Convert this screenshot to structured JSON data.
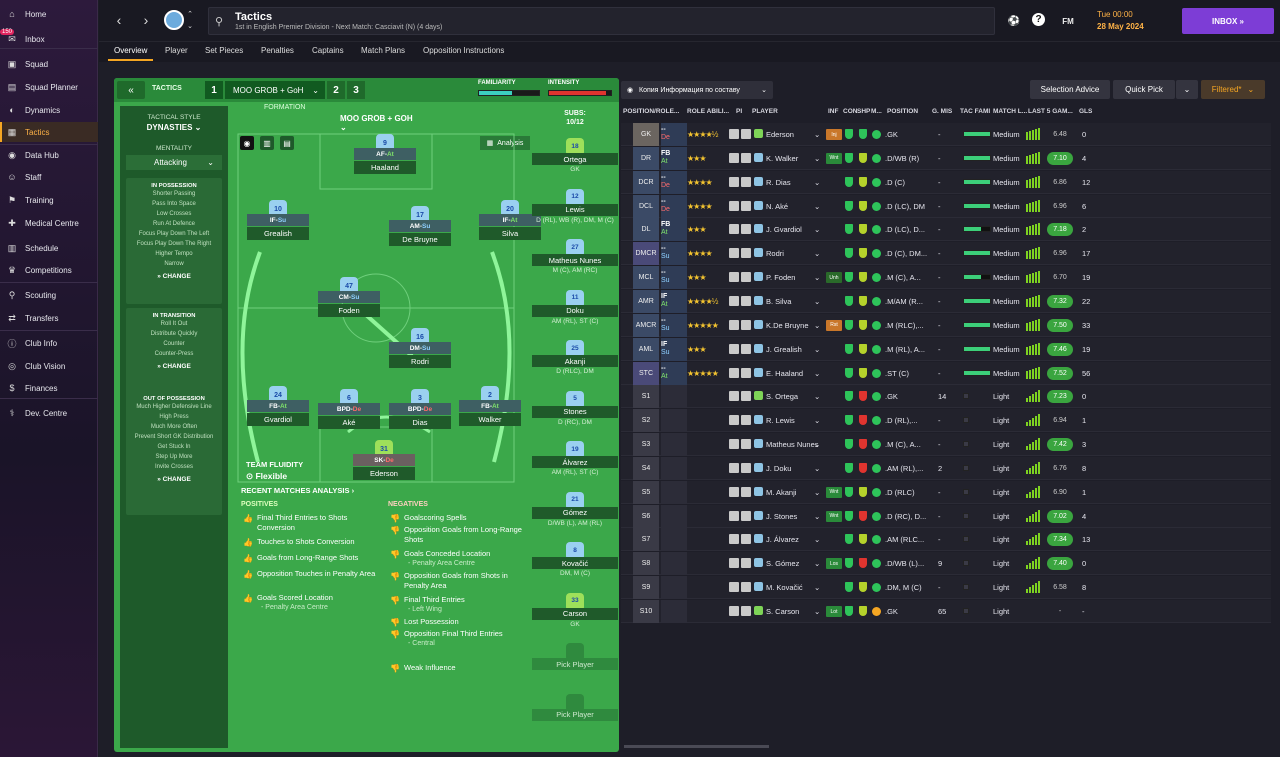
{
  "sidebar": {
    "inbox_badge": "150",
    "items": [
      {
        "label": "Home",
        "icon": "home-icon",
        "glyph": "⌂"
      },
      {
        "label": "Inbox",
        "icon": "inbox-icon",
        "glyph": "✉"
      },
      {
        "label": "Squad",
        "icon": "squad-icon",
        "glyph": "▣"
      },
      {
        "label": "Squad Planner",
        "icon": "planner-icon",
        "glyph": "▤"
      },
      {
        "label": "Dynamics",
        "icon": "dynamics-icon",
        "glyph": "◐"
      },
      {
        "label": "Tactics",
        "icon": "tactics-icon",
        "glyph": "▦"
      },
      {
        "label": "Data Hub",
        "icon": "data-hub-icon",
        "glyph": "◉"
      },
      {
        "label": "Staff",
        "icon": "staff-icon",
        "glyph": "☺"
      },
      {
        "label": "Training",
        "icon": "training-icon",
        "glyph": "⚑"
      },
      {
        "label": "Medical Centre",
        "icon": "medical-icon",
        "glyph": "✚"
      },
      {
        "label": "Schedule",
        "icon": "schedule-icon",
        "glyph": "▥"
      },
      {
        "label": "Competitions",
        "icon": "trophy-icon",
        "glyph": "♛"
      },
      {
        "label": "Scouting",
        "icon": "scouting-icon",
        "glyph": "⚲"
      },
      {
        "label": "Transfers",
        "icon": "transfers-icon",
        "glyph": "⇄"
      },
      {
        "label": "Club Info",
        "icon": "club-info-icon",
        "glyph": "ⓘ"
      },
      {
        "label": "Club Vision",
        "icon": "club-vision-icon",
        "glyph": "◎"
      },
      {
        "label": "Finances",
        "icon": "finances-icon",
        "glyph": "$"
      },
      {
        "label": "Dev. Centre",
        "icon": "dev-centre-icon",
        "glyph": "⚕"
      }
    ]
  },
  "header": {
    "title": "Tactics",
    "subtitle": "1st in English Premier Division - Next Match: Casciavit (N) (4 days)",
    "time": "Tue 00:00",
    "date": "28 May 2024",
    "fm_label": "FM",
    "inbox_label": "INBOX  »"
  },
  "tabs": [
    "Overview",
    "Player",
    "Set Pieces",
    "Penalties",
    "Captains",
    "Match Plans",
    "Opposition Instructions"
  ],
  "tactics": {
    "label": "TACTICS",
    "slots": [
      "1",
      "2",
      "3"
    ],
    "name": "MOO GROB + GoH",
    "familiarity_label": "FAMILIARITY",
    "familiarity_level": 0.55,
    "intensity_label": "INTENSITY",
    "intensity_level": 0.92,
    "colors": {
      "familiarity": "#3ccfbf",
      "intensity": "#e0342f",
      "accent": "#f5a623",
      "pitch": "#3ba84a"
    },
    "style_title": "TACTICAL STYLE",
    "style": "DYNASTIES ⌄",
    "mentality_title": "MENTALITY",
    "mentality": "Attacking",
    "in_possession": {
      "title": "IN POSSESSION",
      "lines": [
        "Shorter Passing",
        "Pass Into Space",
        "Low Crosses",
        "Run At Defence",
        "Focus Play Down The Left",
        "Focus Play Down The Right",
        "Higher Tempo",
        "Narrow"
      ]
    },
    "in_transition": {
      "title": "IN TRANSITION",
      "lines": [
        "Roll It Out",
        "Distribute Quickly",
        "Counter",
        "Counter-Press"
      ]
    },
    "out_of_possession": {
      "title": "OUT OF POSSESSION",
      "lines": [
        "Much Higher Defensive Line",
        "High Press",
        "Much More Often",
        "Prevent Short GK Distribution",
        "Get Stuck In",
        "Step Up More",
        "Invite Crosses"
      ]
    },
    "change_label": "CHANGE",
    "formation_title": "FORMATION",
    "formation": "MOO GROB + GOH ⌄",
    "analysis_label": "Analysis",
    "fluidity_title": "TEAM FLUIDITY",
    "fluidity": "Flexible",
    "subs_title": "SUBS:",
    "subs_count": "10/12"
  },
  "pitch_players": [
    {
      "num": "9",
      "role": "AF",
      "duty": "At",
      "name": "Haaland",
      "gk": false
    },
    {
      "num": "10",
      "role": "IF",
      "duty": "Su",
      "name": "Grealish",
      "gk": false
    },
    {
      "num": "17",
      "role": "AM",
      "duty": "Su",
      "name": "De Bruyne",
      "gk": false
    },
    {
      "num": "20",
      "role": "IF",
      "duty": "At",
      "name": "Silva",
      "gk": false
    },
    {
      "num": "47",
      "role": "CM",
      "duty": "Su",
      "name": "Foden",
      "gk": false
    },
    {
      "num": "16",
      "role": "DM",
      "duty": "Su",
      "name": "Rodri",
      "gk": false
    },
    {
      "num": "24",
      "role": "FB",
      "duty": "At",
      "name": "Gvardiol",
      "gk": false
    },
    {
      "num": "6",
      "role": "BPD",
      "duty": "De",
      "name": "Aké",
      "gk": false
    },
    {
      "num": "3",
      "role": "BPD",
      "duty": "De",
      "name": "Dias",
      "gk": false
    },
    {
      "num": "2",
      "role": "FB",
      "duty": "At",
      "name": "Walker",
      "gk": false
    },
    {
      "num": "31",
      "role": "SK",
      "duty": "De",
      "name": "Ederson",
      "gk": true
    }
  ],
  "subs": [
    {
      "num": "18",
      "name": "Ortega",
      "pos": "GK",
      "gk": true
    },
    {
      "num": "12",
      "name": "Lewis",
      "pos": "D (RL), WB (R), DM, M (C)",
      "gk": false
    },
    {
      "num": "27",
      "name": "Matheus Nunes",
      "pos": "M (C), AM (RC)",
      "gk": false
    },
    {
      "num": "11",
      "name": "Doku",
      "pos": "AM (RL), ST (C)",
      "gk": false
    },
    {
      "num": "25",
      "name": "Akanji",
      "pos": "D (RLC), DM",
      "gk": false
    },
    {
      "num": "5",
      "name": "Stones",
      "pos": "D (RC), DM",
      "gk": false
    },
    {
      "num": "19",
      "name": "Álvarez",
      "pos": "AM (RL), ST (C)",
      "gk": false
    },
    {
      "num": "21",
      "name": "Gómez",
      "pos": "D/WB (L), AM (RL)",
      "gk": false
    },
    {
      "num": "8",
      "name": "Kovačić",
      "pos": "DM, M (C)",
      "gk": false
    },
    {
      "num": "33",
      "name": "Carson",
      "pos": "GK",
      "gk": true
    },
    {
      "num": "",
      "name": "Pick Player",
      "pos": "",
      "gk": false
    },
    {
      "num": "",
      "name": "Pick Player",
      "pos": "",
      "gk": false
    }
  ],
  "recent": {
    "title": "RECENT MATCHES ANALYSIS ›",
    "positives_title": "POSITIVES",
    "negatives_title": "NEGATIVES",
    "positives": [
      {
        "text": "Final Third Entries to Shots Conversion",
        "detail": ""
      },
      {
        "text": "Touches to Shots Conversion",
        "detail": ""
      },
      {
        "text": "Goals from Long-Range Shots",
        "detail": ""
      },
      {
        "text": "Opposition Touches in Penalty Area",
        "detail": ""
      },
      {
        "text": "Goals Scored Location",
        "detail": "- Penalty Area Centre"
      }
    ],
    "negatives": [
      {
        "text": "Goalscoring Spells",
        "detail": ""
      },
      {
        "text": "Opposition Goals from Long-Range Shots",
        "detail": ""
      },
      {
        "text": "Goals Conceded Location",
        "detail": "- Penalty Area Centre"
      },
      {
        "text": "Opposition Goals from Shots in Penalty Area",
        "detail": ""
      },
      {
        "text": "Final Third Entries",
        "detail": "- Left Wing"
      },
      {
        "text": "Lost Possession",
        "detail": ""
      },
      {
        "text": "Opposition Final Third Entries",
        "detail": "- Central"
      },
      {
        "text": "Weak Influence",
        "detail": ""
      }
    ]
  },
  "right": {
    "view_dropdown": "Копия Информация по составу",
    "selection_advice": "Selection Advice",
    "quick_pick": "Quick Pick",
    "filtered": "Filtered*",
    "headers": [
      "POSITION/ROLE...",
      "ROLE ABILI...",
      "PI",
      "PLAYER",
      "INF",
      "CON",
      "SHP",
      "M...",
      "POSITION",
      "G. MIS",
      "TAC FAMI",
      "MATCH L...",
      "LAST 5 GAM...",
      "GLS"
    ],
    "rows": [
      {
        "pos": "GK",
        "r1": "--",
        "r2": "De",
        "stars": "★★★★½",
        "player": "Ederson",
        "inf": "Inj",
        "inf_color": "#c9772a",
        "con": "#2ec45a",
        "shp": "#2ec45a",
        "mic": "#2ec45a",
        "position": ".GK",
        "gmis": "-",
        "tac": 0.0,
        "match": "Medium",
        "bars": [
          8,
          9,
          10,
          11,
          12
        ],
        "rating": "6.48",
        "rtype": "plain",
        "gls": "0",
        "gk": true
      },
      {
        "pos": "DR",
        "r1": "FB",
        "r2": "At",
        "stars": "★★★",
        "player": "K. Walker",
        "inf": "Wnt",
        "inf_color": "#2a8a3a",
        "con": "#2ec45a",
        "shp": "#b5d22b",
        "mic": "#2ec45a",
        "position": ".D/WB (R)",
        "gmis": "-",
        "tac": 0.0,
        "match": "Medium",
        "bars": [
          8,
          9,
          10,
          11,
          12
        ],
        "rating": "7.10",
        "rtype": "good",
        "gls": "4",
        "gk": false
      },
      {
        "pos": "DCR",
        "r1": "--",
        "r2": "De",
        "stars": "★★★★",
        "player": "R. Dias",
        "inf": "",
        "inf_color": "",
        "con": "#2ec45a",
        "shp": "#b5d22b",
        "mic": "#2ec45a",
        "position": ".D (C)",
        "gmis": "-",
        "tac": 0.0,
        "match": "Medium",
        "bars": [
          8,
          9,
          10,
          11,
          12
        ],
        "rating": "6.86",
        "rtype": "plain",
        "gls": "12",
        "gk": false
      },
      {
        "pos": "DCL",
        "r1": "--",
        "r2": "De",
        "stars": "★★★★",
        "player": "N. Aké",
        "inf": "",
        "inf_color": "",
        "con": "#2ec45a",
        "shp": "#b5d22b",
        "mic": "#2ec45a",
        "position": ".D (LC), DM",
        "gmis": "-",
        "tac": 0.0,
        "match": "Medium",
        "bars": [
          8,
          9,
          10,
          11,
          12
        ],
        "rating": "6.96",
        "rtype": "plain",
        "gls": "6",
        "gk": false
      },
      {
        "pos": "DL",
        "r1": "FB",
        "r2": "At",
        "stars": "★★★",
        "player": "J. Gvardiol",
        "inf": "",
        "inf_color": "",
        "con": "#2ec45a",
        "shp": "#b5d22b",
        "mic": "#2ec45a",
        "position": ".D (LC), D...",
        "gmis": "-",
        "tac": 0.35,
        "match": "Medium",
        "bars": [
          8,
          9,
          10,
          11,
          12
        ],
        "rating": "7.18",
        "rtype": "good",
        "gls": "2",
        "gk": false
      },
      {
        "pos": "DMCR",
        "r1": "--",
        "r2": "Su",
        "stars": "★★★★",
        "player": "Rodri",
        "inf": "",
        "inf_color": "",
        "con": "#2ec45a",
        "shp": "#b5d22b",
        "mic": "#2ec45a",
        "position": ".D (C), DM...",
        "gmis": "-",
        "tac": 0.0,
        "match": "Medium",
        "bars": [
          8,
          9,
          10,
          11,
          12
        ],
        "rating": "6.96",
        "rtype": "plain",
        "gls": "17",
        "gk": false
      },
      {
        "pos": "MCL",
        "r1": "--",
        "r2": "Su",
        "stars": "★★★",
        "player": "P. Foden",
        "inf": "Unh",
        "inf_color": "#2a6a2a",
        "con": "#2ec45a",
        "shp": "#b5d22b",
        "mic": "#2ec45a",
        "position": ".M (C), A...",
        "gmis": "-",
        "tac": 0.35,
        "match": "Medium",
        "bars": [
          8,
          9,
          10,
          11,
          12
        ],
        "rating": "6.70",
        "rtype": "plain",
        "gls": "19",
        "gk": false
      },
      {
        "pos": "AMR",
        "r1": "IF",
        "r2": "At",
        "stars": "★★★★½",
        "player": "B. Silva",
        "inf": "",
        "inf_color": "",
        "con": "#2ec45a",
        "shp": "#b5d22b",
        "mic": "#2ec45a",
        "position": ".M/AM (R...",
        "gmis": "-",
        "tac": 0.0,
        "match": "Medium",
        "bars": [
          8,
          9,
          10,
          11,
          12
        ],
        "rating": "7.32",
        "rtype": "good",
        "gls": "22",
        "gk": false
      },
      {
        "pos": "AMCR",
        "r1": "--",
        "r2": "Su",
        "stars": "★★★★★",
        "player": "K.De Bruyne",
        "inf": "Rst",
        "inf_color": "#c9772a",
        "con": "#2ec45a",
        "shp": "#b5d22b",
        "mic": "#2ec45a",
        "position": ".M (RLC),...",
        "gmis": "-",
        "tac": 0.0,
        "match": "Medium",
        "bars": [
          8,
          9,
          10,
          11,
          12
        ],
        "rating": "7.50",
        "rtype": "good",
        "gls": "33",
        "gk": false
      },
      {
        "pos": "AML",
        "r1": "IF",
        "r2": "Su",
        "stars": "★★★",
        "player": "J. Grealish",
        "inf": "",
        "inf_color": "",
        "con": "#2ec45a",
        "shp": "#b5d22b",
        "mic": "#2ec45a",
        "position": ".M (RL), A...",
        "gmis": "-",
        "tac": 0.0,
        "match": "Medium",
        "bars": [
          8,
          9,
          10,
          11,
          12
        ],
        "rating": "7.46",
        "rtype": "good",
        "gls": "19",
        "gk": false
      },
      {
        "pos": "STC",
        "r1": "--",
        "r2": "At",
        "stars": "★★★★★",
        "player": "E. Haaland",
        "inf": "",
        "inf_color": "",
        "con": "#2ec45a",
        "shp": "#b5d22b",
        "mic": "#2ec45a",
        "position": ".ST (C)",
        "gmis": "-",
        "tac": 0.0,
        "match": "Medium",
        "bars": [
          8,
          9,
          10,
          11,
          12
        ],
        "rating": "7.52",
        "rtype": "good",
        "gls": "56",
        "gk": false
      },
      {
        "pos": "S1",
        "r1": "",
        "r2": "",
        "stars": "",
        "player": "S. Ortega",
        "inf": "",
        "inf_color": "",
        "con": "#2ec45a",
        "shp": "#e0342f",
        "mic": "#2ec45a",
        "position": ".GK",
        "gmis": "14",
        "tac": null,
        "match": "Light",
        "bars": [
          4,
          6,
          8,
          10,
          12
        ],
        "rating": "7.23",
        "rtype": "good",
        "gls": "0",
        "gk": true
      },
      {
        "pos": "S2",
        "r1": "",
        "r2": "",
        "stars": "",
        "player": "R. Lewis",
        "inf": "",
        "inf_color": "",
        "con": "#2ec45a",
        "shp": "#e0342f",
        "mic": "#2ec45a",
        "position": ".D (RL),...",
        "gmis": "-",
        "tac": null,
        "match": "Light",
        "bars": [
          4,
          6,
          8,
          10,
          12
        ],
        "rating": "6.94",
        "rtype": "plain",
        "gls": "1",
        "gk": false
      },
      {
        "pos": "S3",
        "r1": "",
        "r2": "",
        "stars": "",
        "player": "Matheus Nunes",
        "inf": "",
        "inf_color": "",
        "con": "#2ec45a",
        "shp": "#e0342f",
        "mic": "#2ec45a",
        "position": ".M (C), A...",
        "gmis": "-",
        "tac": null,
        "match": "Light",
        "bars": [
          4,
          6,
          8,
          10,
          12
        ],
        "rating": "7.42",
        "rtype": "good",
        "gls": "3",
        "gk": false
      },
      {
        "pos": "S4",
        "r1": "",
        "r2": "",
        "stars": "",
        "player": "J. Doku",
        "inf": "",
        "inf_color": "",
        "con": "#2ec45a",
        "shp": "#e0342f",
        "mic": "#2ec45a",
        "position": ".AM (RL),...",
        "gmis": "2",
        "tac": null,
        "match": "Light",
        "bars": [
          4,
          6,
          8,
          10,
          12
        ],
        "rating": "6.76",
        "rtype": "plain",
        "gls": "8",
        "gk": false
      },
      {
        "pos": "S5",
        "r1": "",
        "r2": "",
        "stars": "",
        "player": "M. Akanji",
        "inf": "Wnt",
        "inf_color": "#2a8a3a",
        "con": "#2ec45a",
        "shp": "#b5d22b",
        "mic": "#2ec45a",
        "position": ".D (RLC)",
        "gmis": "-",
        "tac": null,
        "match": "Light",
        "bars": [
          4,
          6,
          8,
          10,
          12
        ],
        "rating": "6.90",
        "rtype": "plain",
        "gls": "1",
        "gk": false
      },
      {
        "pos": "S6",
        "r1": "",
        "r2": "",
        "stars": "",
        "player": "J. Stones",
        "inf": "Wnt",
        "inf_color": "#2a8a3a",
        "con": "#2ec45a",
        "shp": "#e0342f",
        "mic": "#2ec45a",
        "position": ".D (RC), D...",
        "gmis": "-",
        "tac": null,
        "match": "Light",
        "bars": [
          4,
          6,
          8,
          10,
          12
        ],
        "rating": "7.02",
        "rtype": "good",
        "gls": "4",
        "gk": false
      },
      {
        "pos": "S7",
        "r1": "",
        "r2": "",
        "stars": "",
        "player": "J. Álvarez",
        "inf": "",
        "inf_color": "",
        "con": "#2ec45a",
        "shp": "#b5d22b",
        "mic": "#2ec45a",
        "position": ".AM (RLC...",
        "gmis": "-",
        "tac": null,
        "match": "Light",
        "bars": [
          4,
          6,
          8,
          10,
          12
        ],
        "rating": "7.34",
        "rtype": "good",
        "gls": "13",
        "gk": false
      },
      {
        "pos": "S8",
        "r1": "",
        "r2": "",
        "stars": "",
        "player": "S. Gómez",
        "inf": "Los",
        "inf_color": "#2a8a3a",
        "con": "#2ec45a",
        "shp": "#e0342f",
        "mic": "#2ec45a",
        "position": ".D/WB (L)...",
        "gmis": "9",
        "tac": null,
        "match": "Light",
        "bars": [
          4,
          6,
          8,
          10,
          12
        ],
        "rating": "7.40",
        "rtype": "good",
        "gls": "0",
        "gk": false
      },
      {
        "pos": "S9",
        "r1": "",
        "r2": "",
        "stars": "",
        "player": "M. Kovačić",
        "inf": "",
        "inf_color": "",
        "con": "#2ec45a",
        "shp": "#b5d22b",
        "mic": "#2ec45a",
        "position": ".DM, M (C)",
        "gmis": "-",
        "tac": null,
        "match": "Light",
        "bars": [
          4,
          6,
          8,
          10,
          12
        ],
        "rating": "6.58",
        "rtype": "plain",
        "gls": "8",
        "gk": false
      },
      {
        "pos": "S10",
        "r1": "",
        "r2": "",
        "stars": "",
        "player": "S. Carson",
        "inf": "Lot",
        "inf_color": "#2a8a3a",
        "con": "#2ec45a",
        "shp": "#b5d22b",
        "mic": "#f5a623",
        "position": ".GK",
        "gmis": "65",
        "tac": null,
        "match": "Light",
        "bars": [
          0,
          0,
          0,
          0,
          0
        ],
        "rating": "-",
        "rtype": "plain",
        "gls": "-",
        "gk": true
      }
    ]
  }
}
